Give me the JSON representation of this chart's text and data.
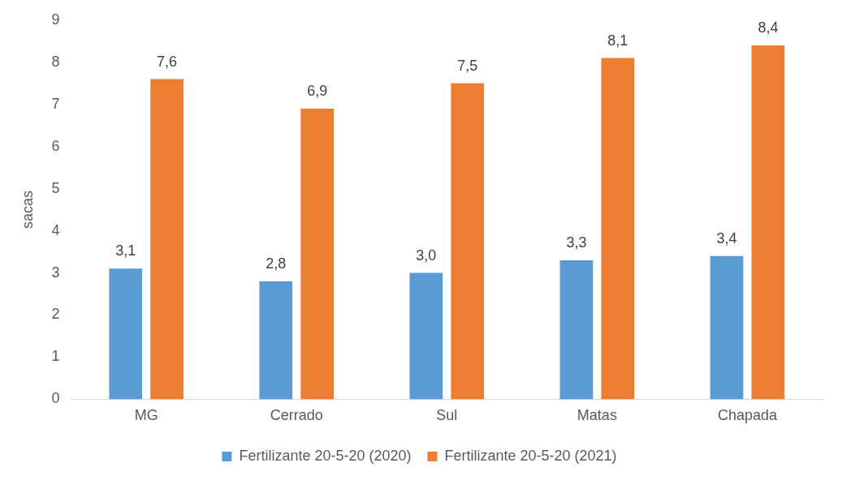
{
  "chart_data": {
    "type": "bar",
    "ylabel": "sacas",
    "categories": [
      "MG",
      "Cerrado",
      "Sul",
      "Matas",
      "Chapada"
    ],
    "series": [
      {
        "name": "Fertilizante 20-5-20 (2020)",
        "color": "#5b9bd5",
        "values": [
          3.1,
          2.8,
          3.0,
          3.3,
          3.4
        ],
        "value_labels": [
          "3,1",
          "2,8",
          "3,0",
          "3,3",
          "3,4"
        ]
      },
      {
        "name": "Fertilizante 20-5-20 (2021)",
        "color": "#ed7d31",
        "values": [
          7.6,
          6.9,
          7.5,
          8.1,
          8.4
        ],
        "value_labels": [
          "7,6",
          "6,9",
          "7,5",
          "8,1",
          "8,4"
        ]
      }
    ],
    "ylim": [
      0,
      9
    ],
    "yticks": [
      0,
      1,
      2,
      3,
      4,
      5,
      6,
      7,
      8,
      9
    ],
    "grid": false,
    "legend": "bottom"
  }
}
